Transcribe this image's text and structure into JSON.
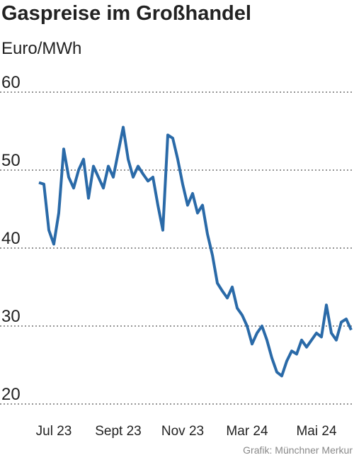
{
  "chart_data": {
    "type": "line",
    "title": "Gaspreise im Großhandel",
    "subtitle": "Euro/MWh",
    "source": "Grafik: Münchner Merkur",
    "categories": [
      null,
      null,
      null,
      "Jul 23",
      null,
      null,
      null,
      null,
      null,
      null,
      null,
      null,
      null,
      null,
      null,
      null,
      "Sept 23",
      null,
      null,
      null,
      null,
      null,
      null,
      null,
      null,
      null,
      null,
      null,
      null,
      "Nov 23",
      null,
      null,
      null,
      null,
      null,
      null,
      null,
      null,
      null,
      null,
      null,
      null,
      "Mar 24",
      null,
      null,
      null,
      null,
      null,
      null,
      null,
      null,
      null,
      null,
      null,
      null,
      null,
      "Mai 24",
      null,
      null,
      null,
      null,
      null,
      null,
      null
    ],
    "values": [
      48.4,
      48.2,
      42.3,
      40.5,
      44.5,
      52.7,
      49.1,
      47.7,
      50,
      51.4,
      46.4,
      50.5,
      49.1,
      47.7,
      50.5,
      49.1,
      52.3,
      55.5,
      51.4,
      49.1,
      50.5,
      49.5,
      48.6,
      49.1,
      45.5,
      42.3,
      54.5,
      54.1,
      51.4,
      48.2,
      45.5,
      47,
      44.5,
      45.5,
      41.8,
      39.1,
      35.5,
      34.5,
      33.6,
      35,
      32.3,
      31.4,
      30,
      27.7,
      29.1,
      30,
      28.2,
      25.9,
      24.1,
      23.6,
      25.5,
      26.8,
      26.4,
      28.2,
      27.3,
      28.2,
      29.1,
      28.6,
      32.7,
      29.1,
      28.2,
      30.5,
      30.9,
      29.5
    ],
    "color": "#2a6aa8",
    "ylim": [
      20,
      60
    ],
    "yticks": [
      20,
      30,
      40,
      50,
      60
    ],
    "grid": true
  }
}
